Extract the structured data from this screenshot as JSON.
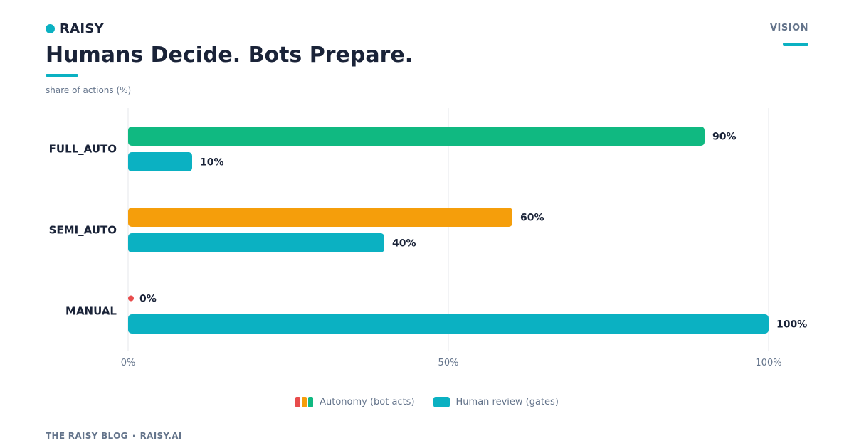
{
  "brand": {
    "name": "RAISY",
    "accent": "#0bb1c2"
  },
  "section_tag": "VISION",
  "title": "Humans Decide. Bots Prepare.",
  "subtitle": "share of actions (%)",
  "legend": [
    {
      "label": "Autonomy (bot acts)",
      "colors": [
        "#e84c4c",
        "#f59e0b",
        "#10b981"
      ]
    },
    {
      "label": "Human review (gates)",
      "colors": [
        "#0bb1c2"
      ]
    }
  ],
  "footer": {
    "left": "THE RAISY BLOG",
    "separator": "·",
    "right": "RAISY.AI"
  },
  "chart_data": {
    "type": "bar",
    "orientation": "horizontal",
    "categories": [
      "FULL_AUTO",
      "SEMI_AUTO",
      "MANUAL"
    ],
    "series": [
      {
        "name": "Autonomy (bot acts)",
        "values": [
          90,
          60,
          0
        ],
        "colors": [
          "#10b981",
          "#f59e0b",
          "#e84c4c"
        ]
      },
      {
        "name": "Human review (gates)",
        "values": [
          10,
          40,
          100
        ],
        "colors": [
          "#0bb1c2",
          "#0bb1c2",
          "#0bb1c2"
        ]
      }
    ],
    "value_labels": [
      [
        "90%",
        "60%",
        "0%"
      ],
      [
        "10%",
        "40%",
        "100%"
      ]
    ],
    "x_ticks": [
      0,
      50,
      100
    ],
    "x_tick_labels": [
      "0%",
      "50%",
      "100%"
    ],
    "xlim": [
      0,
      100
    ],
    "ylabel": "share of actions (%)",
    "grid": "vertical",
    "legend_position": "bottom-center"
  }
}
